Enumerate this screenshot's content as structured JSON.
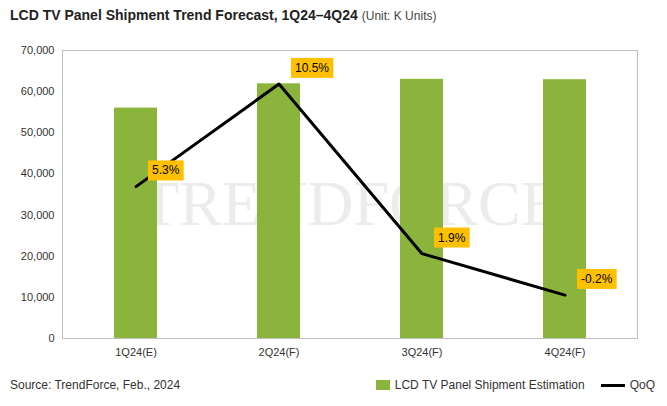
{
  "chart_data": {
    "type": "bar",
    "title": "LCD TV Panel Shipment Trend Forecast, 1Q24–4Q24",
    "subtitle": "(Unit: K Units)",
    "caption": "Source: TrendForce, Feb., 2024",
    "watermark": "TRENDFORCE",
    "categories": [
      "1Q24(E)",
      "2Q24(F)",
      "3Q24(F)",
      "4Q24(F)"
    ],
    "series": [
      {
        "name": "LCD TV Panel Shipment Estimation",
        "type": "bar",
        "color": "#8ab43c",
        "values": [
          56000,
          61900,
          63000,
          62900
        ]
      },
      {
        "name": "QoQ",
        "type": "line",
        "color": "#000000",
        "axis": "y2",
        "data_labels": true,
        "values": [
          5.3,
          10.5,
          1.9,
          -0.2
        ],
        "value_labels": [
          "5.3%",
          "10.5%",
          "1.9%",
          "-0.2%"
        ]
      }
    ],
    "ylim": [
      0,
      70000
    ],
    "yticks": [
      0,
      {
        "value": 10000,
        "label": "10,000"
      },
      {
        "value": 20000,
        "label": "20,000"
      },
      {
        "value": 30000,
        "label": "30,000"
      },
      {
        "value": 40000,
        "label": "40,000"
      },
      {
        "value": 50000,
        "label": "50,000"
      },
      {
        "value": 60000,
        "label": "60,000"
      },
      {
        "value": 70000,
        "label": "70,000"
      }
    ],
    "y2lim": [
      -2.4,
      12.2
    ],
    "y2ticks": [],
    "grid": false,
    "legend": "bottom-right"
  }
}
